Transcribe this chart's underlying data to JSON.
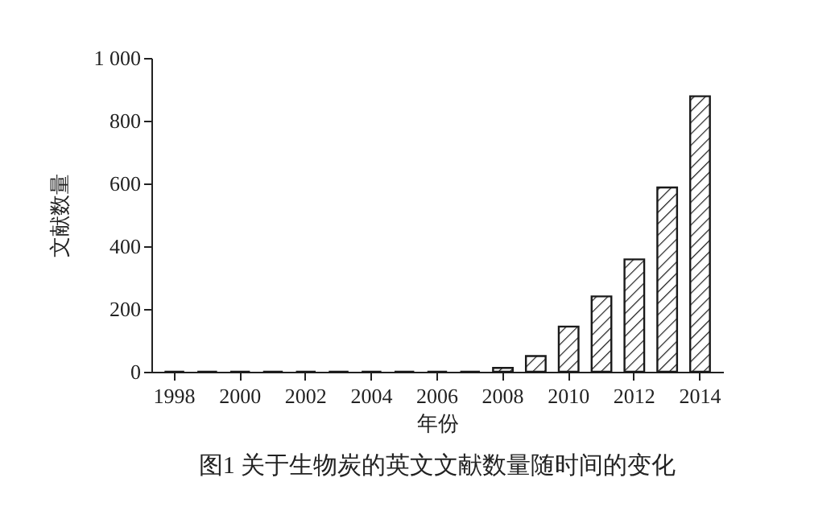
{
  "chart_data": {
    "type": "bar",
    "title": "图1 关于生物炭的英文文献数量随时间的变化",
    "xlabel": "年份",
    "ylabel": "文献数量",
    "categories": [
      "1998",
      null,
      "2000",
      null,
      "2002",
      null,
      "2004",
      null,
      "2006",
      null,
      "2008",
      null,
      "2010",
      null,
      "2012",
      null,
      "2014"
    ],
    "values": [
      0,
      0,
      0,
      0,
      0,
      0,
      0,
      0,
      0,
      0,
      12,
      50,
      144,
      240,
      358,
      587,
      878
    ],
    "color": "#1a1a1a",
    "ylim": [
      0,
      1000
    ],
    "yticks": [
      0,
      200,
      400,
      600,
      800,
      {
        "value": 1000,
        "label": "1 000"
      }
    ],
    "grid": false
  }
}
